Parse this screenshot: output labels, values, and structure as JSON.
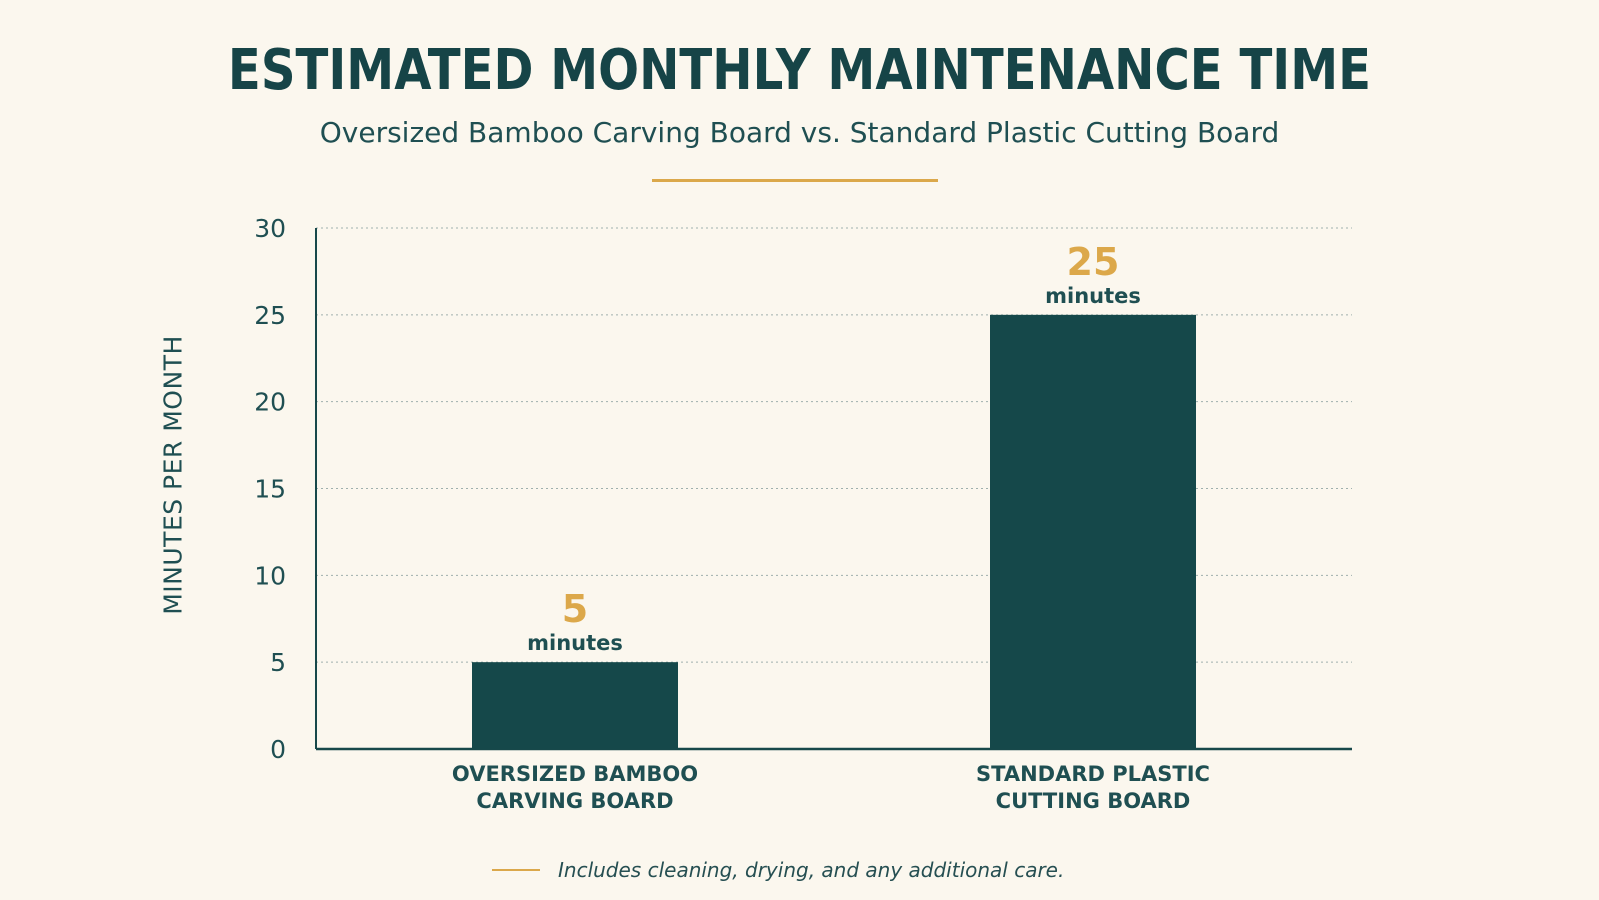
{
  "chart_data": {
    "type": "bar",
    "title": "ESTIMATED MONTHLY MAINTENANCE TIME",
    "subtitle": "Oversized Bamboo Carving Board vs. Standard Plastic Cutting Board",
    "ylabel": "MINUTES PER MONTH",
    "xlabel": "",
    "ylim": [
      0,
      30
    ],
    "yticks": [
      0,
      5,
      10,
      15,
      20,
      25,
      30
    ],
    "grid": true,
    "categories": [
      [
        "OVERSIZED BAMBOO",
        "CARVING BOARD"
      ],
      [
        "STANDARD PLASTIC",
        "CUTTING BOARD"
      ]
    ],
    "values": [
      5,
      25
    ],
    "value_labels": [
      "5",
      "25"
    ],
    "value_unit": "minutes",
    "bar_color": "#15484a",
    "accent_color": "#dca84a",
    "footnote": "Includes cleaning, drying, and any additional care."
  }
}
